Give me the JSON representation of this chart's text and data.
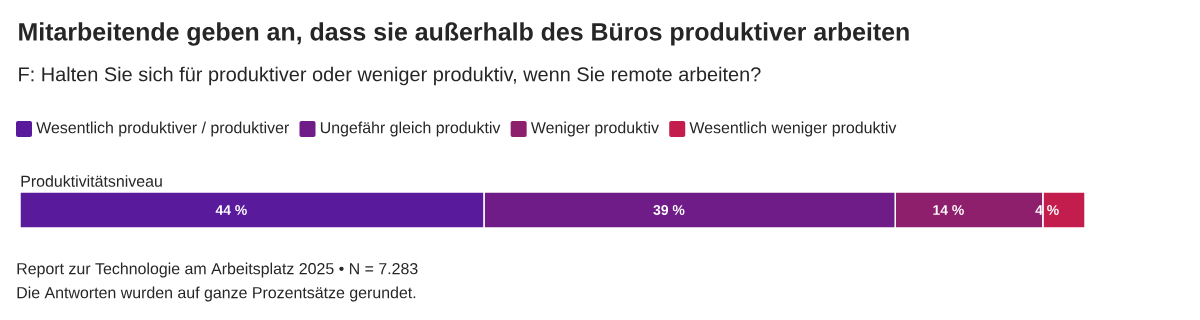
{
  "chart_data": {
    "type": "bar",
    "orientation": "horizontal",
    "stacked": true,
    "title": "Mitarbeitende geben an, dass sie außerhalb des Büros produktiver arbeiten",
    "subtitle": "F: Halten Sie sich für produktiver oder weniger produktiv, wenn Sie remote arbeiten?",
    "categories": [
      "Produktivitätsniveau"
    ],
    "series": [
      {
        "name": "Wesentlich produktiver / produktiver",
        "color": "#5a1a9c",
        "values": [
          44
        ],
        "value_labels": [
          "44 %"
        ]
      },
      {
        "name": "Ungefähr gleich produktiv",
        "color": "#6f1b88",
        "values": [
          39
        ],
        "value_labels": [
          "39 %"
        ]
      },
      {
        "name": "Weniger produktiv",
        "color": "#8e1f6c",
        "values": [
          14
        ],
        "value_labels": [
          "14 %"
        ]
      },
      {
        "name": "Wesentlich weniger produktiv",
        "color": "#c21d4c",
        "values": [
          4
        ],
        "value_labels": [
          "4 %"
        ]
      }
    ],
    "legend": "top",
    "annotations": [
      "Report zur Technologie am Arbeitsplatz 2025 • N = 7.283",
      "Die Antworten wurden auf ganze Prozentsätze gerundet."
    ]
  }
}
